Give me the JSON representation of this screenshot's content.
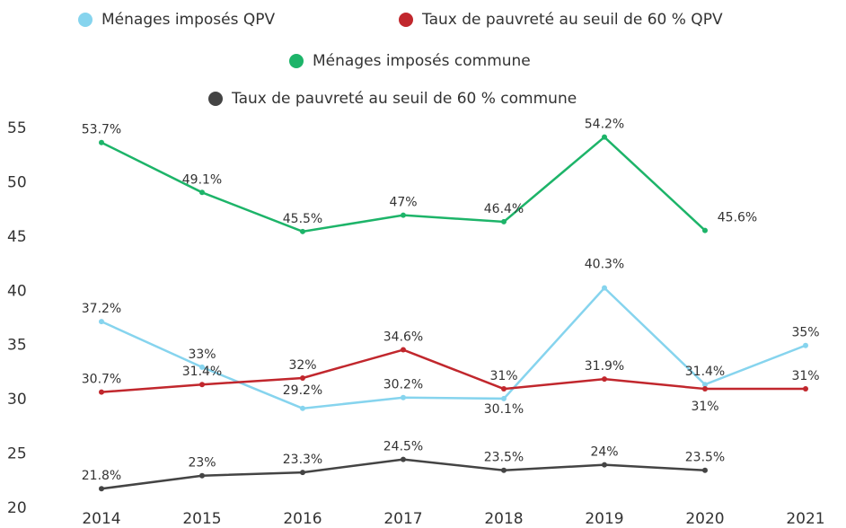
{
  "chart_data": {
    "type": "line",
    "categories": [
      "2014",
      "2015",
      "2016",
      "2017",
      "2018",
      "2019",
      "2020",
      "2021"
    ],
    "series": [
      {
        "name": "Ménages imposés QPV",
        "color": "#86d4ee",
        "values": [
          37.2,
          33,
          29.2,
          30.2,
          30.1,
          40.3,
          31.4,
          35
        ],
        "value_labels": [
          "37.2%",
          "33%",
          "29.2%",
          "30.2%",
          "30.1%",
          "40.3%",
          "31.4%",
          "35%"
        ]
      },
      {
        "name": "Taux de pauvreté au seuil de 60 % QPV",
        "color": "#c1272d",
        "values": [
          30.7,
          31.4,
          32,
          34.6,
          31,
          31.9,
          31,
          31
        ],
        "value_labels": [
          "30.7%",
          "31.4%",
          "32%",
          "34.6%",
          "31%",
          "31.9%",
          "31%",
          "31%"
        ]
      },
      {
        "name": "Ménages imposés commune",
        "color": "#1db469",
        "values": [
          53.7,
          49.1,
          45.5,
          47,
          46.4,
          54.2,
          45.6,
          null
        ],
        "value_labels": [
          "53.7%",
          "49.1%",
          "45.5%",
          "47%",
          "46.4%",
          "54.2%",
          "45.6%",
          null
        ]
      },
      {
        "name": "Taux de pauvreté au seuil de 60 % commune",
        "color": "#444444",
        "values": [
          21.8,
          23,
          23.3,
          24.5,
          23.5,
          24,
          23.5,
          null
        ],
        "value_labels": [
          "21.8%",
          "23%",
          "23.3%",
          "24.5%",
          "23.5%",
          "24%",
          "23.5%",
          null
        ]
      }
    ],
    "ylim": [
      20,
      55
    ],
    "yticks": [
      20,
      25,
      30,
      35,
      40,
      45,
      50,
      55
    ]
  }
}
